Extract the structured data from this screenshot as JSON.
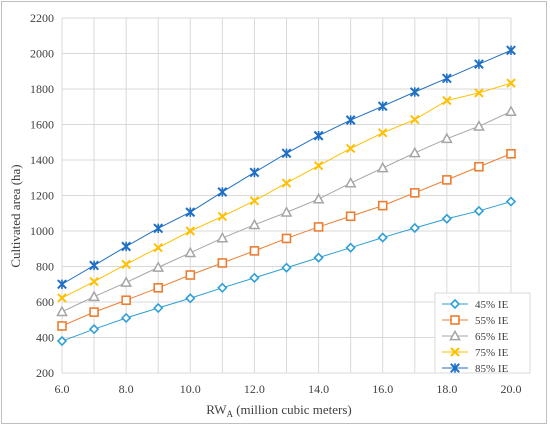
{
  "chart_data": {
    "type": "line",
    "title": "",
    "xlabel_main": "RW",
    "xlabel_sub": "A",
    "xlabel_suffix": " (million cubic meters)",
    "ylabel": "Cultivated area (ha)",
    "xlim": [
      6.0,
      20.0
    ],
    "ylim": [
      200,
      2200
    ],
    "x_ticks": [
      "6.0",
      "8.0",
      "10.0",
      "12.0",
      "14.0",
      "16.0",
      "18.0",
      "20.0"
    ],
    "x_tick_values": [
      6,
      8,
      10,
      12,
      14,
      16,
      18,
      20
    ],
    "y_ticks": [
      "200",
      "400",
      "600",
      "800",
      "1000",
      "1200",
      "1400",
      "1600",
      "1800",
      "2000",
      "2200"
    ],
    "y_tick_values": [
      200,
      400,
      600,
      800,
      1000,
      1200,
      1400,
      1600,
      1800,
      2000,
      2200
    ],
    "grid": true,
    "legend_position": "bottom-right",
    "x": [
      6,
      7,
      8,
      9,
      10,
      11,
      12,
      13,
      14,
      15,
      16,
      17,
      18,
      19,
      20
    ],
    "series": [
      {
        "name": "45% IE",
        "color": "#2e9fd6",
        "marker": "diamond",
        "values": [
          380,
          447,
          510,
          566,
          621,
          680,
          736,
          793,
          850,
          906,
          963,
          1017,
          1069,
          1113,
          1166
        ]
      },
      {
        "name": "55% IE",
        "color": "#ed7d31",
        "marker": "square",
        "values": [
          465,
          543,
          610,
          680,
          752,
          820,
          888,
          958,
          1023,
          1083,
          1143,
          1215,
          1288,
          1362,
          1435
        ]
      },
      {
        "name": "65% IE",
        "color": "#a5a5a5",
        "marker": "triangle",
        "values": [
          545,
          630,
          710,
          795,
          877,
          960,
          1035,
          1105,
          1180,
          1270,
          1355,
          1440,
          1520,
          1590,
          1673
        ]
      },
      {
        "name": "75% IE",
        "color": "#ffc000",
        "marker": "x",
        "values": [
          623,
          715,
          812,
          906,
          1000,
          1082,
          1170,
          1270,
          1368,
          1465,
          1553,
          1628,
          1735,
          1778,
          1833
        ]
      },
      {
        "name": "85% IE",
        "color": "#1f6fc5",
        "marker": "star",
        "values": [
          700,
          806,
          913,
          1015,
          1106,
          1220,
          1330,
          1438,
          1537,
          1625,
          1703,
          1783,
          1860,
          1940,
          2018
        ]
      }
    ]
  }
}
